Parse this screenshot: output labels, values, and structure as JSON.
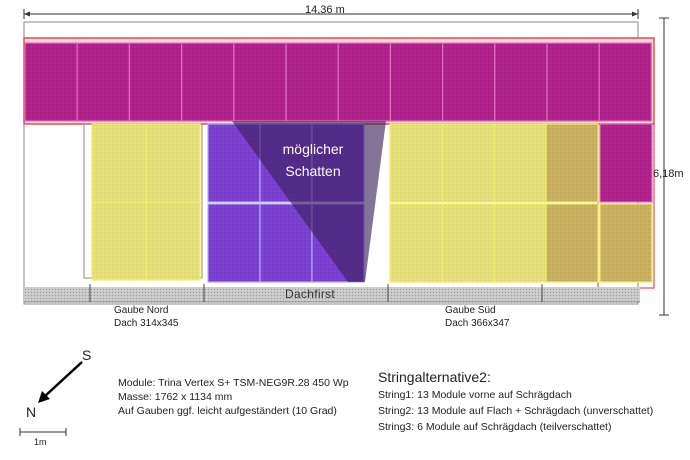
{
  "dimensions": {
    "width_label": "14,36 m",
    "height_label": "6,18m"
  },
  "shadow_label": {
    "line1": "möglicher",
    "line2": "Schatten"
  },
  "ridge_label": "Dachfirst",
  "dormers": {
    "north": {
      "name": "Gaube Nord",
      "size": "Dach 314x345"
    },
    "south": {
      "name": "Gaube Süd",
      "size": "Dach 366x347"
    }
  },
  "compass": {
    "south": "S",
    "north": "N"
  },
  "scale": {
    "label": "1m"
  },
  "module_info": [
    "Module: Trina Vertex S+ TSM-NEG9R.28  450 Wp",
    "Masse: 1762 x 1134 mm",
    "Auf Gauben ggf. leicht aufgeständert (10 Grad)"
  ],
  "string_alternative": {
    "title": "Stringalternative2:",
    "strings": [
      "String1: 13 Module vorne auf Schrägdach",
      "String2: 13 Module auf Flach + Schrägdach (unverschattet)",
      "String3: 6 Module auf Schrägdach (teilverschattet)"
    ]
  },
  "colors": {
    "string1_magenta": "#b0208a",
    "string2_yellow": "#e6e07a",
    "string3_purple": "#7a3fd0",
    "shadow": "#3a1f5c",
    "ridge_gray": "#c8c8c8",
    "roof_edge_red": "#e05050"
  }
}
